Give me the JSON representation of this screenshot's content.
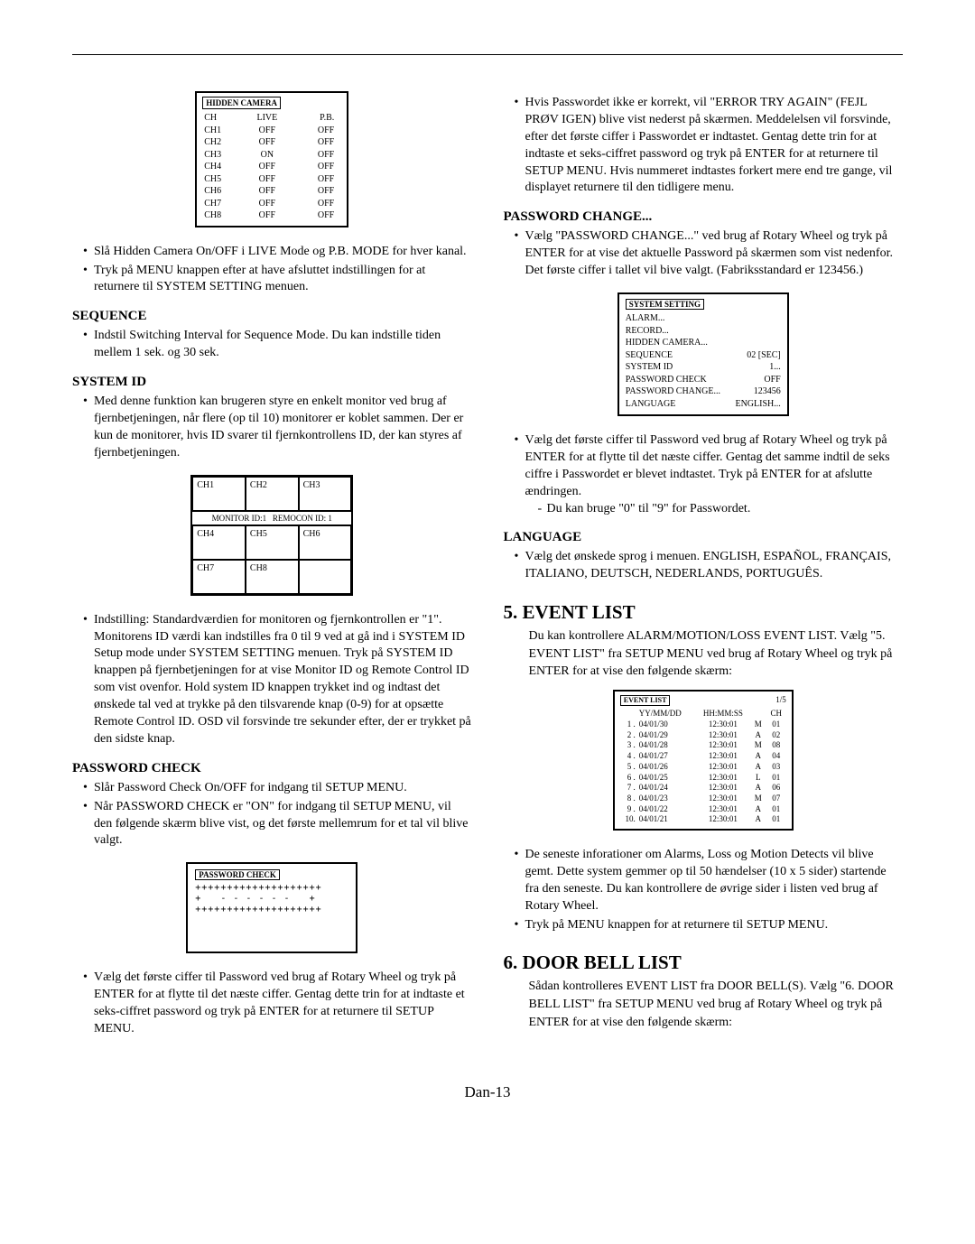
{
  "hiddenCamera": {
    "title": "HIDDEN CAMERA",
    "headers": [
      "CH",
      "LIVE",
      "P.B."
    ],
    "rows": [
      [
        "CH1",
        "OFF",
        "OFF"
      ],
      [
        "CH2",
        "OFF",
        "OFF"
      ],
      [
        "CH3",
        "ON",
        "OFF"
      ],
      [
        "CH4",
        "OFF",
        "OFF"
      ],
      [
        "CH5",
        "OFF",
        "OFF"
      ],
      [
        "CH6",
        "OFF",
        "OFF"
      ],
      [
        "CH7",
        "OFF",
        "OFF"
      ],
      [
        "CH8",
        "OFF",
        "OFF"
      ]
    ]
  },
  "left": {
    "bullets1": [
      "Slå Hidden Camera On/OFF i LIVE Mode og P.B. MODE for hver kanal.",
      "Tryk på MENU knappen efter at have afsluttet indstillingen for at returnere til SYSTEM SETTING menuen."
    ],
    "sequence": {
      "heading": "SEQUENCE",
      "bullet": "Indstil Switching Interval for Sequence Mode. Du kan indstille tiden mellem 1 sek. og 30 sek."
    },
    "systemId": {
      "heading": "SYSTEM ID",
      "bullet1": "Med denne funktion kan brugeren styre en enkelt monitor ved brug af fjernbetjeningen, når flere (op til 10) monitorer er koblet sammen. Der er kun de monitorer, hvis ID svarer til fjernkontrollens ID, der kan styres af fjernbetjeningen.",
      "gridCells": [
        "CH1",
        "CH2",
        "CH3",
        "CH4",
        "CH5",
        "CH6",
        "CH7",
        "CH8",
        ""
      ],
      "gridLabel": "MONITOR ID:1   REMOCON ID: 1",
      "bullet2": "Indstilling: Standardværdien for monitoren og fjernkontrollen er \"1\". Monitorens ID værdi kan indstilles fra 0 til 9 ved at gå ind i SYSTEM ID Setup mode under SYSTEM SETTING menuen. Tryk på SYSTEM ID knappen på fjernbetjeningen for at vise Monitor ID og Remote Control ID som vist ovenfor. Hold system ID knappen trykket ind og indtast det ønskede tal ved at trykke på den tilsvarende knap (0-9) for at opsætte Remote Control ID. OSD vil forsvinde tre sekunder efter, der er trykket på den sidste knap."
    },
    "passwordCheck": {
      "heading": "PASSWORD CHECK",
      "bullet1": "Slår Password Check On/OFF for indgang til SETUP MENU.",
      "bullet2": "Når PASSWORD CHECK er \"ON\" for indgang til SETUP MENU, vil den følgende skærm blive vist, og det første mellemrum for et tal vil blive valgt.",
      "boxTitle": "PASSWORD CHECK",
      "line1": "++++++++++++++++++++",
      "line2": "+   - - - - - -   +",
      "line3": "++++++++++++++++++++",
      "bullet3": "Vælg det første ciffer til Password ved brug af Rotary Wheel og tryk på ENTER for at flytte til det næste ciffer. Gentag dette trin for at indtaste et seks-ciffret password og tryk på ENTER for at returnere til SETUP MENU."
    }
  },
  "right": {
    "topBullet": "Hvis Passwordet ikke er korrekt, vil \"ERROR TRY AGAIN\" (FEJL PRØV IGEN) blive vist nederst på skærmen. Meddelelsen vil forsvinde, efter det første ciffer i Passwordet er indtastet. Gentag dette trin for at indtaste et seks-ciffret password og tryk på ENTER for at returnere til SETUP MENU. Hvis nummeret indtastes forkert mere end tre gange, vil displayet returnere til den tidligere menu.",
    "passwordChange": {
      "heading": "PASSWORD CHANGE...",
      "bullet1": "Vælg \"PASSWORD CHANGE...\" ved brug af Rotary Wheel og tryk på ENTER for at vise det aktuelle Password på skærmen som vist nedenfor. Det første ciffer i tallet vil bive valgt. (Fabriksstandard er 123456.)",
      "boxTitle": "SYSTEM SETTING",
      "rows": [
        [
          "ALARM...",
          ""
        ],
        [
          "RECORD...",
          ""
        ],
        [
          "HIDDEN CAMERA...",
          ""
        ],
        [
          "SEQUENCE",
          "02 [SEC]"
        ],
        [
          "SYSTEM ID",
          "1..."
        ],
        [
          "PASSWORD CHECK",
          "OFF"
        ],
        [
          "PASSWORD CHANGE...",
          "123456"
        ],
        [
          "LANGUAGE",
          "ENGLISH..."
        ]
      ],
      "bullet2": "Vælg det første ciffer til Password ved brug af Rotary Wheel og tryk på ENTER for at flytte til det næste ciffer. Gentag det samme indtil de seks ciffre i Passwordet er blevet indtastet. Tryk på ENTER for at afslutte ændringen.",
      "sub": "Du kan bruge \"0\" til \"9\" for Passwordet."
    },
    "language": {
      "heading": "LANGUAGE",
      "bullet": "Vælg det ønskede sprog i menuen. ENGLISH, ESPAÑOL, FRANÇAIS, ITALIANO, DEUTSCH, NEDERLANDS, PORTUGUÊS."
    },
    "eventList": {
      "heading": "5. EVENT LIST",
      "intro": "Du kan kontrollere ALARM/MOTION/LOSS EVENT LIST. Vælg \"5. EVENT LIST\" fra SETUP MENU ved brug af Rotary Wheel og tryk på ENTER for at vise den følgende skærm:",
      "boxTitle": "EVENT LIST",
      "page": "1/5",
      "headers": [
        "",
        "YY/MM/DD",
        "HH:MM:SS",
        "",
        "CH"
      ],
      "rows": [
        [
          "1 .",
          "04/01/30",
          "12:30:01",
          "M",
          "01"
        ],
        [
          "2 .",
          "04/01/29",
          "12:30:01",
          "A",
          "02"
        ],
        [
          "3 .",
          "04/01/28",
          "12:30:01",
          "M",
          "08"
        ],
        [
          "4 .",
          "04/01/27",
          "12:30:01",
          "A",
          "04"
        ],
        [
          "5 .",
          "04/01/26",
          "12:30:01",
          "A",
          "03"
        ],
        [
          "6 .",
          "04/01/25",
          "12:30:01",
          "L",
          "01"
        ],
        [
          "7 .",
          "04/01/24",
          "12:30:01",
          "A",
          "06"
        ],
        [
          "8 .",
          "04/01/23",
          "12:30:01",
          "M",
          "07"
        ],
        [
          "9 .",
          "04/01/22",
          "12:30:01",
          "A",
          "01"
        ],
        [
          "10.",
          "04/01/21",
          "12:30:01",
          "A",
          "01"
        ]
      ],
      "bullet1": "De seneste inforationer om Alarms, Loss og Motion Detects vil blive gemt. Dette system gemmer op til 50 hændelser (10 x 5 sider) startende fra den seneste. Du kan kontrollere de øvrige sider i listen ved brug af Rotary Wheel.",
      "bullet2": "Tryk på MENU knappen for at returnere til SETUP MENU."
    },
    "doorBell": {
      "heading": "6. DOOR BELL LIST",
      "text": "Sådan kontrolleres EVENT LIST fra DOOR BELL(S). Vælg \"6. DOOR BELL LIST\" fra SETUP MENU ved brug af Rotary Wheel og tryk på ENTER for at vise den følgende skærm:"
    }
  },
  "pageNum": "Dan-13"
}
